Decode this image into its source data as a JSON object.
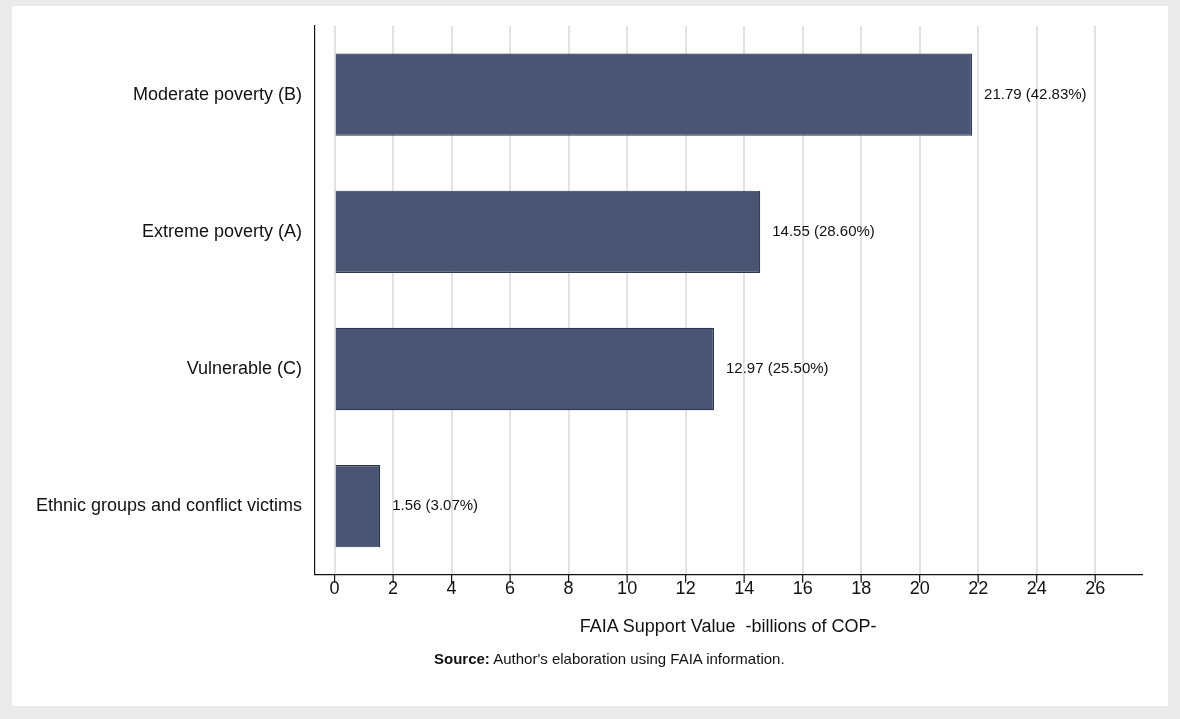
{
  "chart_data": {
    "type": "bar",
    "orientation": "horizontal",
    "categories": [
      "Moderate poverty (B)",
      "Extreme poverty (A)",
      "Vulnerable (C)",
      "Ethnic groups and conflict victims"
    ],
    "values": [
      21.79,
      14.55,
      12.97,
      1.56
    ],
    "value_labels": [
      "21.79 (42.83%)",
      "14.55 (28.60%)",
      "12.97 (25.50%)",
      "1.56 (3.07%)"
    ],
    "color": "#4a5574",
    "xlabel": "FAIA Support Value  -billions of COP-",
    "xlim": [
      -0.7,
      27.6
    ],
    "xticks": [
      0,
      2,
      4,
      6,
      8,
      10,
      12,
      14,
      16,
      18,
      20,
      22,
      24,
      26
    ],
    "grid": "x",
    "annotations": [
      "Source: Author's elaboration using FAIA information."
    ]
  }
}
